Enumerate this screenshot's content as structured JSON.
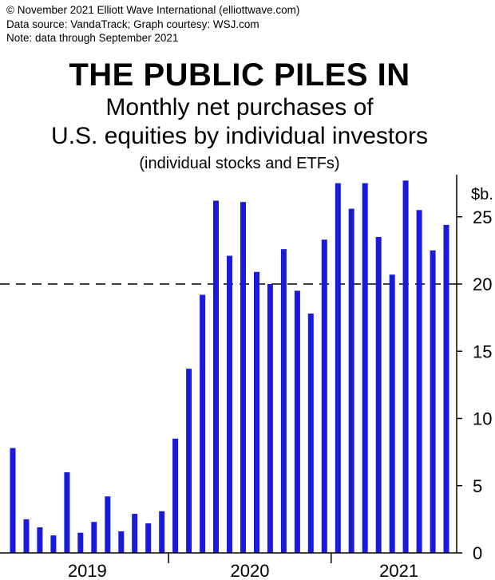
{
  "header": {
    "copyright": "© November 2021 Elliott Wave International (elliottwave.com)",
    "source": "Data source: VandaTrack; Graph courtesy: WSJ.com",
    "note": "Note: data through September 2021"
  },
  "chart_data": {
    "type": "bar",
    "title": "THE PUBLIC PILES IN",
    "subtitle_line1": "Monthly net purchases of",
    "subtitle_line2": "U.S. equities by individual investors",
    "subtitle_line3": "(individual stocks and ETFs)",
    "ylabel": "$b.",
    "ylim": [
      0,
      27
    ],
    "yticks": [
      0,
      5,
      10,
      15,
      20,
      25
    ],
    "reference_line": {
      "value": 20,
      "style": "dashed"
    },
    "x_year_labels": [
      "2019",
      "2020",
      "2021"
    ],
    "bar_color": "#1a1adc",
    "series": [
      {
        "values": [
          7.8,
          2.5,
          1.9,
          1.3,
          6.0,
          1.5,
          2.3,
          4.2,
          1.6,
          2.9,
          2.2,
          3.1,
          8.5,
          13.7,
          19.2,
          26.2,
          22.1,
          26.1,
          20.9,
          20.0,
          22.6,
          19.5,
          17.8,
          23.3,
          27.5,
          25.6,
          27.5,
          23.5,
          20.7,
          27.7,
          25.5,
          22.5,
          24.4
        ]
      }
    ]
  }
}
